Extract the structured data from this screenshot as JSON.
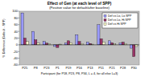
{
  "chart_data": {
    "type": "bar",
    "title": "Effect of Gen (at each level of SPP)",
    "subtitle": "(Positive value for default/after baseline)",
    "x_label": "Participant (for P18, P23, P8, P34, L = 4, for all else L=3)",
    "y_label": "% Difference (Default - SPP)",
    "categories": [
      "P25",
      "P8",
      "P23",
      "P1",
      "P19",
      "P16",
      "P13",
      "P11",
      "P21",
      "P28",
      "P30"
    ],
    "series": [
      {
        "name": "Def vs Lo, Lo SPP",
        "color": "#9999ff",
        "values": [
          95,
          40,
          10,
          -5,
          5,
          30,
          8,
          60,
          12,
          5,
          -10
        ]
      },
      {
        "name": "Def vs Lo, Hi SPP",
        "color": "#993366",
        "values": [
          20,
          15,
          5,
          -8,
          12,
          10,
          4,
          18,
          6,
          8,
          -35
        ]
      },
      {
        "name": "Def vs Hi SPP",
        "color": "#ffffcc",
        "values": [
          10,
          5,
          3,
          2,
          6,
          4,
          2,
          8,
          3,
          4,
          -5
        ]
      }
    ],
    "ylim": [
      -60,
      100
    ],
    "yticks": [
      -60,
      -40,
      -20,
      0,
      20,
      40,
      60,
      80,
      100
    ],
    "grid": false,
    "legend": "top-right"
  }
}
